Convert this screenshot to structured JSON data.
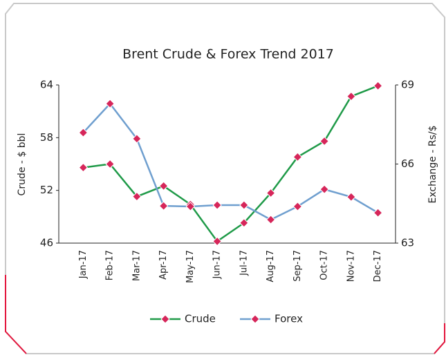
{
  "chart_data": {
    "type": "line",
    "title": "Brent Crude & Forex Trend 2017",
    "categories": [
      "Jan-17",
      "Feb-17",
      "Mar-17",
      "Apr-17",
      "May-17",
      "Jun-17",
      "Jul-17",
      "Aug-17",
      "Sep-17",
      "Oct-17",
      "Nov-17",
      "Dec-17"
    ],
    "series": [
      {
        "name": "Crude",
        "color": "#1f9a48",
        "values": [
          54.6,
          55.0,
          51.3,
          52.5,
          50.4,
          46.2,
          48.3,
          51.7,
          55.8,
          57.6,
          62.7,
          63.9
        ]
      },
      {
        "name": "Forex",
        "color": "#6f9fcf",
        "axis": "y2",
        "values": [
          67.19,
          68.29,
          66.96,
          64.41,
          64.39,
          64.44,
          64.44,
          63.89,
          64.39,
          65.04,
          64.75,
          64.15
        ]
      }
    ],
    "marker_color": "#d6265a",
    "ylabel": "Crude - $ bbl",
    "y2label": "Exchange - Rs/$",
    "ylim": [
      46,
      64
    ],
    "yticks": [
      46,
      52,
      58,
      64
    ],
    "y2lim": [
      63,
      69
    ],
    "y2ticks": [
      63,
      66,
      69
    ],
    "legend_position": "bottom",
    "grid": false
  }
}
